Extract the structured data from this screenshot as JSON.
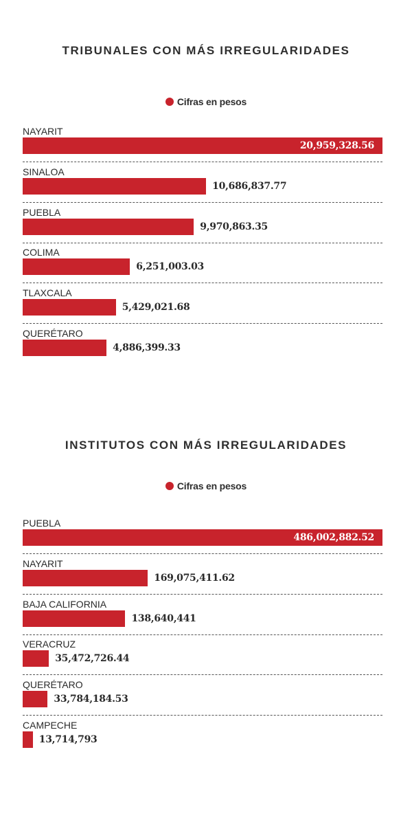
{
  "colors": {
    "bar": "#c8232c",
    "text": "#2e2e2e"
  },
  "chart_data": [
    {
      "type": "bar",
      "orientation": "horizontal",
      "title": "TRIBUNALES CON MÁS IRREGULARIDADES",
      "legend": "Cifras en pesos",
      "categories": [
        "NAYARIT",
        "SINALOA",
        "PUEBLA",
        "COLIMA",
        "TLAXCALA",
        "QUERÉTARO"
      ],
      "values": [
        20959328.56,
        10686837.77,
        9970863.35,
        6251003.03,
        5429021.68,
        4886399.33
      ],
      "value_labels": [
        "20,959,328.56",
        "10,686,837.77",
        "9,970,863.35",
        "6,251,003.03",
        "5,429,021.68",
        "4,886,399.33"
      ]
    },
    {
      "type": "bar",
      "orientation": "horizontal",
      "title": "INSTITUTOS CON MÁS IRREGULARIDADES",
      "legend": "Cifras en pesos",
      "categories": [
        "PUEBLA",
        "NAYARIT",
        "BAJA CALIFORNIA",
        "VERACRUZ",
        "QUERÉTARO",
        "CAMPECHE"
      ],
      "values": [
        486002882.52,
        169075411.62,
        138640441,
        35472726.44,
        33784184.53,
        13714793
      ],
      "value_labels": [
        "486,002,882.52",
        "169,075,411.62",
        "138,640,441",
        "35,472,726.44",
        "33,784,184.53",
        "13,714,793"
      ]
    }
  ]
}
